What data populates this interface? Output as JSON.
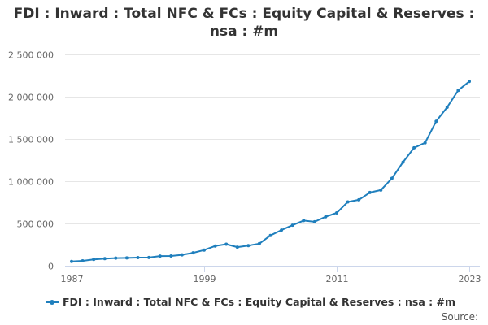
{
  "title_lines": [
    "FDI : Inward : Total NFC & FCs : Equity Capital & Reserves :",
    "nsa : #m"
  ],
  "source_label": "Source:",
  "colors": {
    "series": "#1f7fbd",
    "grid": "#e6e6e6",
    "axis": "#ccd6eb",
    "tick_label": "#666666"
  },
  "chart_data": {
    "type": "line",
    "title": "FDI : Inward : Total NFC & FCs : Equity Capital & Reserves : nsa : #m",
    "xlabel": "",
    "ylabel": "",
    "x_ticks": [
      1987,
      1999,
      2011,
      2023
    ],
    "y_ticks": [
      0,
      500000,
      1000000,
      1500000,
      2000000,
      2500000
    ],
    "y_tick_labels": [
      "0",
      "500 000",
      "1 000 000",
      "1 500 000",
      "2 000 000",
      "2 500 000"
    ],
    "xlim": [
      1987,
      2023
    ],
    "ylim": [
      0,
      2500000
    ],
    "grid": true,
    "legend_position": "bottom",
    "series": [
      {
        "name": "FDI : Inward : Total NFC & FCs : Equity Capital & Reserves : nsa : #m",
        "x": [
          1987,
          1988,
          1989,
          1990,
          1991,
          1992,
          1993,
          1994,
          1995,
          1996,
          1997,
          1998,
          1999,
          2000,
          2001,
          2002,
          2003,
          2004,
          2005,
          2006,
          2007,
          2008,
          2009,
          2010,
          2011,
          2012,
          2013,
          2014,
          2015,
          2016,
          2017,
          2018,
          2019,
          2020,
          2021,
          2022,
          2023
        ],
        "values": [
          50000,
          58000,
          74000,
          84000,
          90000,
          92000,
          96000,
          97000,
          114000,
          115000,
          129000,
          153000,
          186000,
          234000,
          255000,
          220000,
          238000,
          262000,
          359000,
          422000,
          480000,
          535000,
          520000,
          580000,
          625000,
          755000,
          780000,
          866000,
          895000,
          1035000,
          1225000,
          1395000,
          1455000,
          1710000,
          1875000,
          2075000,
          2180000
        ]
      }
    ]
  }
}
